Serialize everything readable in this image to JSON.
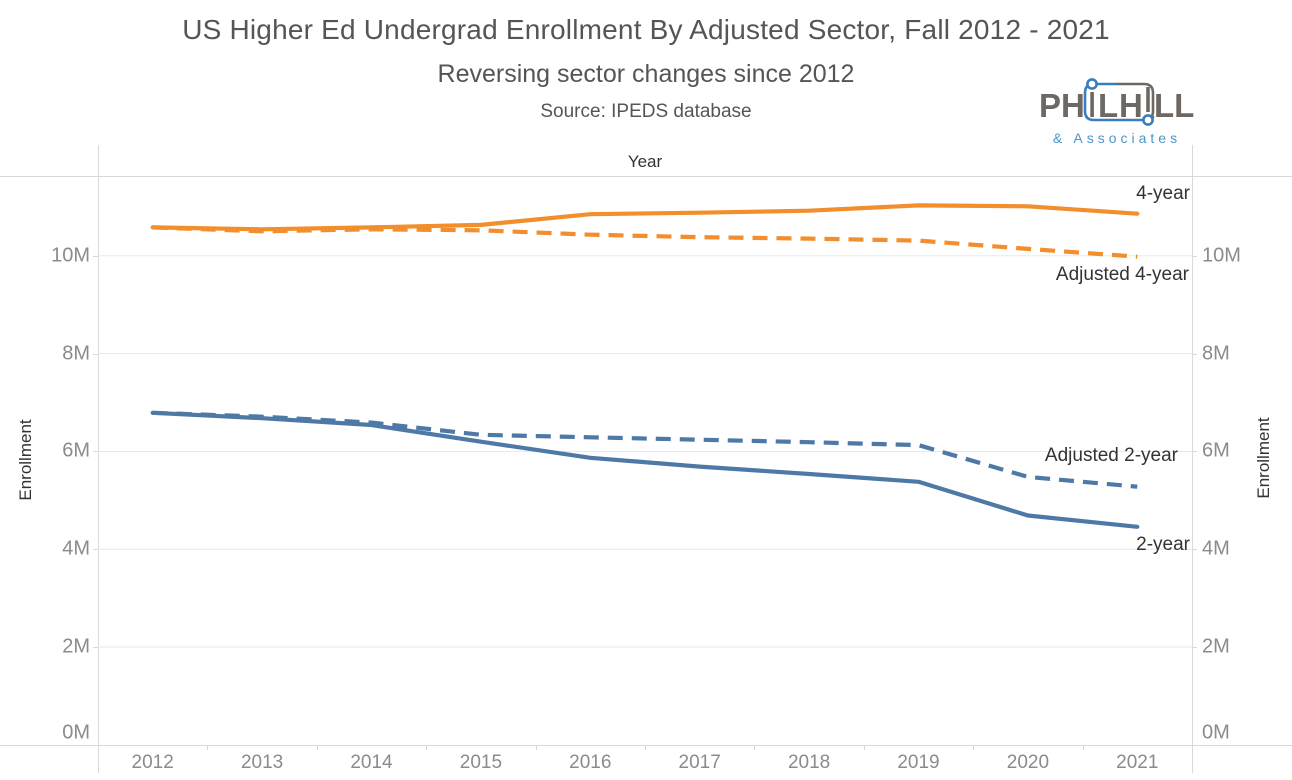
{
  "header": {
    "title": "US Higher Ed Undergrad Enrollment By Adjusted Sector, Fall 2012 - 2021",
    "subtitle": "Reversing sector changes since 2012",
    "source": "Source: IPEDS database",
    "logo": {
      "text_p1": "PH",
      "text_p2": "L",
      "text_p3": "H",
      "text_p4": "LL",
      "tagline": "& Associates",
      "gray": "#6e6862",
      "blue": "#3a7dbf",
      "tagline_blue": "#4c96c8"
    }
  },
  "chart": {
    "x_axis_title": "Year",
    "y_axis_title_left": "Enrollment",
    "y_axis_title_right": "Enrollment"
  },
  "chart_data": {
    "type": "line",
    "title": "US Higher Ed Undergrad Enrollment By Adjusted Sector, Fall 2012 - 2021",
    "subtitle": "Reversing sector changes since 2012",
    "xlabel": "Year",
    "ylabel": "Enrollment",
    "categories": [
      "2012",
      "2013",
      "2014",
      "2015",
      "2016",
      "2017",
      "2018",
      "2019",
      "2020",
      "2021"
    ],
    "unit": "millions",
    "ylim": [
      0,
      11.63
    ],
    "grid": true,
    "legend_position": "inline-end-labels",
    "y_ticks": [
      {
        "value": 0,
        "label": "0M"
      },
      {
        "value": 2,
        "label": "2M"
      },
      {
        "value": 4,
        "label": "4M"
      },
      {
        "value": 6,
        "label": "6M"
      },
      {
        "value": 8,
        "label": "8M"
      },
      {
        "value": 10,
        "label": "10M"
      }
    ],
    "series": [
      {
        "name": "4-year",
        "label": "4-year",
        "color": "#F28E2B",
        "dashed": false,
        "values": [
          10.58,
          10.54,
          10.58,
          10.63,
          10.85,
          10.88,
          10.92,
          11.03,
          11.01,
          10.86
        ]
      },
      {
        "name": "Adjusted 4-year",
        "label": "Adjusted 4-year",
        "color": "#F28E2B",
        "dashed": true,
        "values": [
          10.58,
          10.5,
          10.54,
          10.52,
          10.43,
          10.38,
          10.35,
          10.31,
          10.14,
          9.98
        ]
      },
      {
        "name": "Adjusted 2-year",
        "label": "Adjusted 2-year",
        "color": "#4E79A7",
        "dashed": true,
        "values": [
          6.79,
          6.71,
          6.59,
          6.34,
          6.29,
          6.24,
          6.19,
          6.13,
          5.48,
          5.28
        ]
      },
      {
        "name": "2-year",
        "label": "2-year",
        "color": "#4E79A7",
        "dashed": false,
        "values": [
          6.79,
          6.68,
          6.54,
          6.2,
          5.87,
          5.69,
          5.54,
          5.38,
          4.69,
          4.46
        ]
      }
    ]
  }
}
